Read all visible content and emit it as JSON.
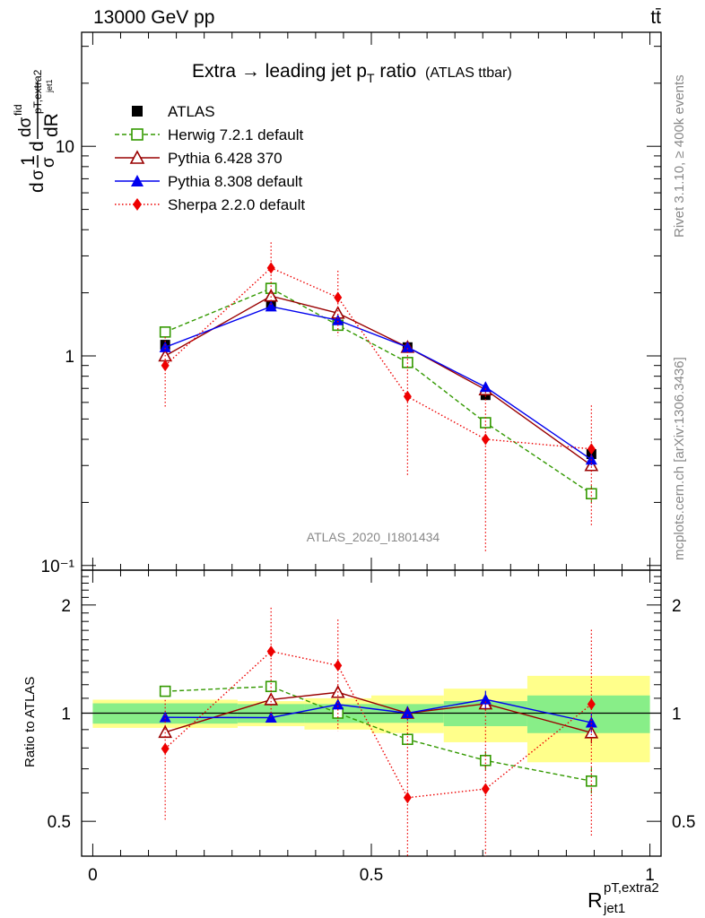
{
  "header": {
    "left": "13000 GeV pp",
    "right": "tt̄"
  },
  "side_texts": {
    "rivet": "Rivet 3.1.10, ≥ 400k events",
    "mcplots": "mcplots.cern.ch [arXiv:1306.3436]"
  },
  "chart_data": {
    "type": "line",
    "title_main": "Extra → leading jet p",
    "title_sub": "T",
    "title_suffix": " ratio",
    "title_note": "(ATLAS ttbar)",
    "watermark": "ATLAS_2020_I1801434",
    "ylabel_top": "dσ/dR (normalized)",
    "ylabel_ratio": "Ratio to ATLAS",
    "xlabel_main": "R",
    "xlabel_sub": "jet1",
    "xlabel_sup": "pT,extra2",
    "x_ticks": [
      "0",
      "0.5",
      "1"
    ],
    "y_ticks_top": [
      "10⁻¹",
      "1",
      "10"
    ],
    "y_ticks_ratio": [
      "0.5",
      "1",
      "2"
    ],
    "xlim": [
      -0.02,
      1.02
    ],
    "ylim_top": [
      0.095,
      35
    ],
    "ylim_ratio": [
      0.4,
      2.5
    ],
    "y_log": true,
    "bins": [
      [
        0,
        0.26
      ],
      [
        0.26,
        0.38
      ],
      [
        0.38,
        0.5
      ],
      [
        0.5,
        0.63
      ],
      [
        0.63,
        0.78
      ],
      [
        0.78,
        1.0
      ]
    ],
    "x": [
      0.13,
      0.32,
      0.44,
      0.565,
      0.705,
      0.895
    ],
    "data": {
      "name": "ATLAS",
      "values": [
        1.13,
        1.77,
        1.4,
        1.1,
        0.65,
        0.34
      ],
      "band_inner": [
        0.065,
        0.06,
        0.06,
        0.06,
        0.08,
        0.12
      ],
      "band_outer": [
        0.09,
        0.08,
        0.1,
        0.12,
        0.17,
        0.27
      ]
    },
    "series": [
      {
        "name": "Herwig 7.2.1 default",
        "color": "#339900",
        "marker": "open-square",
        "dash": "5,3",
        "values": [
          1.3,
          2.1,
          1.4,
          0.93,
          0.48,
          0.22
        ],
        "err": [
          0.04,
          0.05,
          0.04,
          0.04,
          0.03,
          0.02
        ]
      },
      {
        "name": "Pythia 6.428 370",
        "color": "#990000",
        "marker": "open-triangle",
        "dash": "",
        "values": [
          1.0,
          1.93,
          1.6,
          1.1,
          0.69,
          0.3
        ],
        "err": [
          0.03,
          0.05,
          0.05,
          0.04,
          0.03,
          0.02
        ]
      },
      {
        "name": "Pythia 8.308 default",
        "color": "#0000ee",
        "marker": "filled-triangle",
        "dash": "",
        "values": [
          1.1,
          1.72,
          1.48,
          1.1,
          0.71,
          0.32
        ],
        "err": [
          0.03,
          0.05,
          0.05,
          0.05,
          0.04,
          0.02
        ]
      },
      {
        "name": "Sherpa 2.2.0 default",
        "color": "#ee0000",
        "marker": "filled-diamond",
        "dash": "1.5,2.5",
        "values": [
          0.9,
          2.63,
          1.9,
          0.64,
          0.4,
          0.36
        ],
        "err_low": [
          0.33,
          0.9,
          0.65,
          0.37,
          0.285,
          0.205
        ],
        "err_high": [
          0.33,
          0.85,
          0.65,
          0.45,
          0.3,
          0.22
        ]
      }
    ],
    "legend_position": "top-left"
  }
}
